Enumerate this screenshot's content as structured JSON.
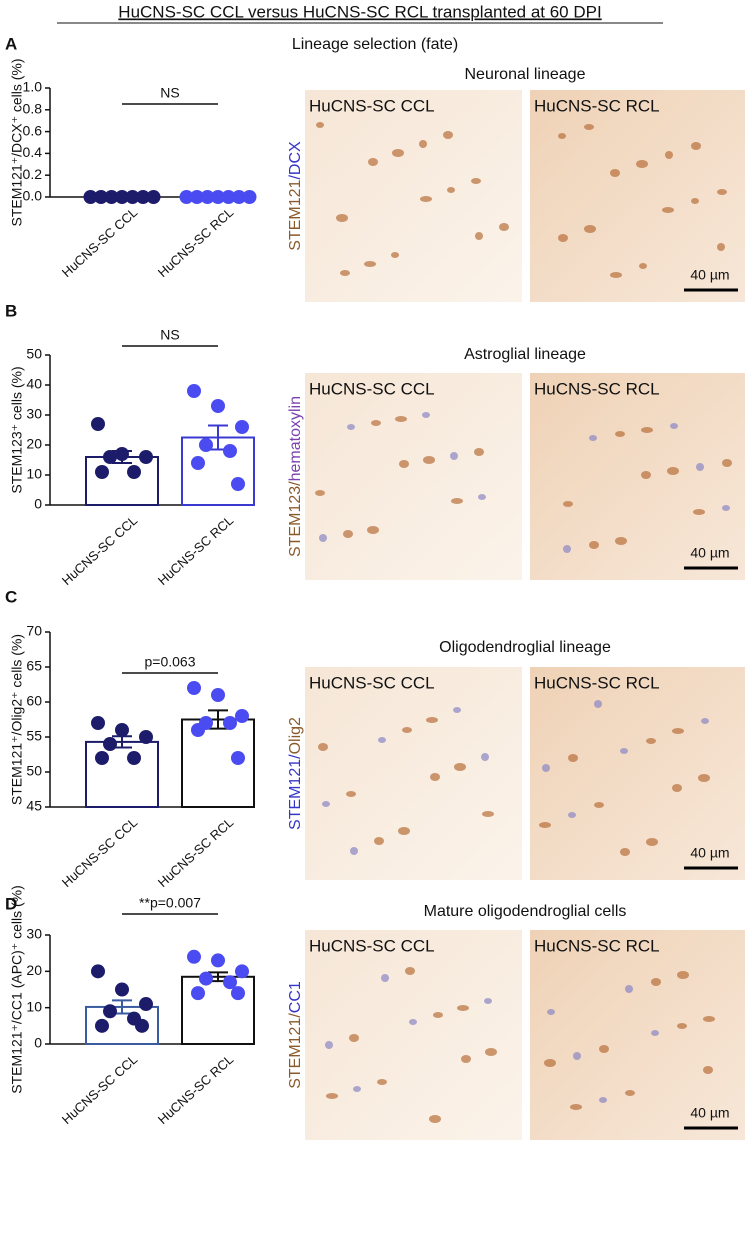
{
  "title": "HuCNS-SC CCL versus HuCNS-SC RCL transplanted at 60 DPI",
  "heading": "Lineage selection (fate)",
  "chart_data": [
    {
      "type": "bar",
      "letter": "A",
      "ylabel": "STEM121⁺/DCX⁺ cells (%)",
      "categories": [
        "HuCNS-SC CCL",
        "HuCNS-SC RCL"
      ],
      "values": [
        0,
        0
      ],
      "errors": [
        0,
        0
      ],
      "points": [
        [
          0,
          0,
          0,
          0,
          0,
          0,
          0
        ],
        [
          0,
          0,
          0,
          0,
          0,
          0,
          0
        ]
      ],
      "colors": [
        "#1c1c6b",
        "#4b4bf2"
      ],
      "edge_colors": [
        "#1c1c6b",
        "#4b4bf2"
      ],
      "ylim": [
        0,
        1
      ],
      "yticks": [
        {
          "value": 0,
          "label": "0.0"
        },
        0.2,
        0.4,
        0.6,
        0.8,
        {
          "value": 1,
          "label": "1.0"
        }
      ],
      "annotation": "NS"
    },
    {
      "type": "bar",
      "letter": "B",
      "ylabel": "STEM123⁺ cells (%)",
      "categories": [
        "HuCNS-SC CCL",
        "HuCNS-SC RCL"
      ],
      "values": [
        16,
        22.5
      ],
      "errors": [
        2,
        4
      ],
      "points": [
        [
          27,
          17,
          16,
          16,
          11,
          11
        ],
        [
          38,
          33,
          26,
          20,
          18,
          14,
          7
        ]
      ],
      "colors": [
        "#1c1c6b",
        "#4b4bf2"
      ],
      "edge_colors": [
        "#1c1c6b",
        "#3a3ad0"
      ],
      "ylim": [
        0,
        50
      ],
      "yticks": [
        0,
        10,
        20,
        30,
        40,
        50
      ],
      "annotation": "NS"
    },
    {
      "type": "bar",
      "letter": "C",
      "ylabel": "STEM121⁺/Olig2⁺ cells (%)",
      "categories": [
        "HuCNS-SC CCL",
        "HuCNS-SC RCL"
      ],
      "values": [
        54.3,
        57.5
      ],
      "errors": [
        0.8,
        1.3
      ],
      "points": [
        [
          57,
          56,
          55,
          54,
          52,
          52
        ],
        [
          62,
          61,
          58,
          57,
          57,
          56,
          52
        ]
      ],
      "colors": [
        "#1c1c6b",
        "#4b4bf2"
      ],
      "edge_colors": [
        "#1c1c6b",
        "#111111"
      ],
      "ylim": [
        45,
        70
      ],
      "yticks": [
        45,
        50,
        55,
        60,
        65,
        70
      ],
      "annotation": "p=0.063"
    },
    {
      "type": "bar",
      "letter": "D",
      "ylabel": "STEM121⁺/CC1 (APC)⁺ cells (%)",
      "categories": [
        "HuCNS-SC CCL",
        "HuCNS-SC RCL"
      ],
      "values": [
        10.2,
        18.5
      ],
      "errors": [
        1.8,
        1.2
      ],
      "points": [
        [
          20,
          15,
          11,
          9,
          7,
          5,
          5
        ],
        [
          24,
          23,
          20,
          18,
          17,
          14,
          14
        ]
      ],
      "colors": [
        "#1c1c6b",
        "#4b4bf2"
      ],
      "edge_colors": [
        "#3b5ba0",
        "#111111"
      ],
      "ylim": [
        0,
        30
      ],
      "yticks": [
        0,
        10,
        20,
        30
      ],
      "annotation": "**p=0.007"
    }
  ],
  "images": [
    {
      "title": "Neuronal lineage",
      "left": "HuCNS-SC CCL",
      "right": "HuCNS-SC RCL",
      "scale": "40 µm",
      "stain": [
        {
          "text": "STEM121",
          "color": "#8b5a2b"
        },
        {
          "text": "/DCX",
          "color": "#3535c8"
        }
      ]
    },
    {
      "title": "Astroglial lineage",
      "left": "HuCNS-SC CCL",
      "right": "HuCNS-SC RCL",
      "scale": "40 µm",
      "stain": [
        {
          "text": "STEM123/",
          "color": "#8b5a2b"
        },
        {
          "text": "hematoxylin",
          "color": "#7a3fb0"
        }
      ]
    },
    {
      "title": "Oligodendroglial lineage",
      "left": "HuCNS-SC CCL",
      "right": "HuCNS-SC RCL",
      "scale": "40 µm",
      "stain": [
        {
          "text": "STEM121/",
          "color": "#3535c8"
        },
        {
          "text": "Olig2",
          "color": "#8b5a2b"
        }
      ]
    },
    {
      "title": "Mature oligodendroglial cells",
      "left": "HuCNS-SC CCL",
      "right": "HuCNS-SC RCL",
      "scale": "40 µm",
      "stain": [
        {
          "text": "STEM121/",
          "color": "#8b5a2b"
        },
        {
          "text": "CC1",
          "color": "#3535c8"
        }
      ]
    }
  ]
}
